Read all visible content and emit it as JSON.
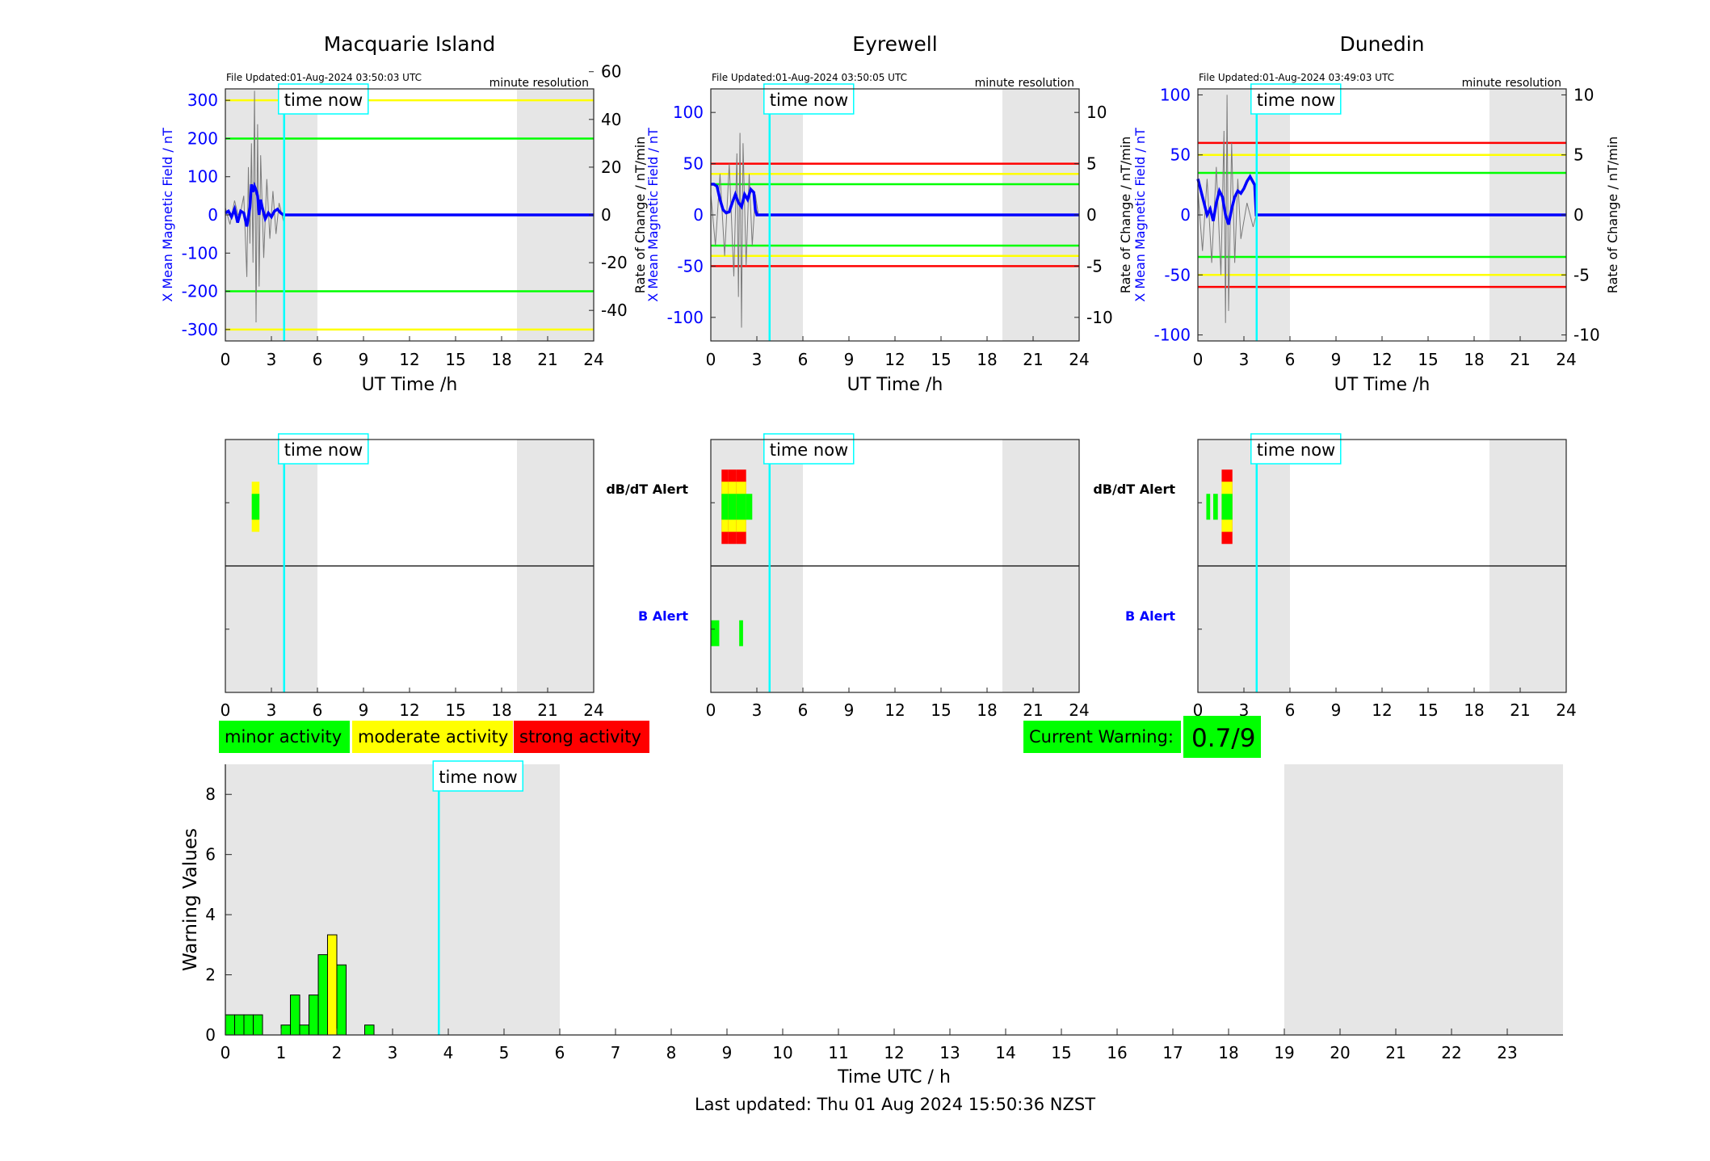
{
  "stations": [
    {
      "name": "Macquarie Island",
      "file_updated": "File Updated:01-Aug-2024 03:50:03 UTC",
      "resolution": "minute resolution",
      "ylabel_left": "X Mean Magnetic Field / nT",
      "ylabel_right": "Rate of Change / nT/min",
      "ylim_left": [
        -330,
        330
      ],
      "ylim_right": [
        -52.8,
        52.8
      ],
      "left_ticks": [
        -300,
        -200,
        -100,
        0,
        100,
        200,
        300
      ],
      "right_ticks": [
        -40,
        -20,
        0,
        20,
        40,
        60
      ],
      "show_right_labels": true,
      "thresholds": [
        {
          "value": 300,
          "color": "#ffff00"
        },
        {
          "value": 200,
          "color": "#00ff00"
        },
        {
          "value": -200,
          "color": "#00ff00"
        },
        {
          "value": -300,
          "color": "#ffff00"
        }
      ],
      "dbdt_alerts": [
        {
          "x0": 1.72,
          "x1": 2.22,
          "levels": [
            1,
            2
          ]
        }
      ],
      "b_alerts": [],
      "field_series": [
        [
          0,
          5
        ],
        [
          0.2,
          10
        ],
        [
          0.4,
          -5
        ],
        [
          0.6,
          15
        ],
        [
          0.8,
          -20
        ],
        [
          1.0,
          10
        ],
        [
          1.2,
          5
        ],
        [
          1.4,
          -30
        ],
        [
          1.6,
          20
        ],
        [
          1.7,
          80
        ],
        [
          1.8,
          60
        ],
        [
          1.9,
          75
        ],
        [
          2.0,
          65
        ],
        [
          2.1,
          50
        ],
        [
          2.2,
          0
        ],
        [
          2.3,
          40
        ],
        [
          2.4,
          20
        ],
        [
          2.6,
          -10
        ],
        [
          2.8,
          5
        ],
        [
          3.0,
          -5
        ],
        [
          3.2,
          10
        ],
        [
          3.4,
          15
        ],
        [
          3.6,
          5
        ],
        [
          3.8,
          0
        ],
        [
          3.9,
          0
        ],
        [
          24,
          0
        ]
      ],
      "rate_series": [
        [
          0,
          3
        ],
        [
          0.3,
          -4
        ],
        [
          0.6,
          6
        ],
        [
          0.9,
          -2
        ],
        [
          1.2,
          8
        ],
        [
          1.4,
          -26
        ],
        [
          1.5,
          20
        ],
        [
          1.6,
          -12
        ],
        [
          1.7,
          30
        ],
        [
          1.8,
          -20
        ],
        [
          1.9,
          52
        ],
        [
          2.0,
          -45
        ],
        [
          2.1,
          38
        ],
        [
          2.2,
          -30
        ],
        [
          2.3,
          25
        ],
        [
          2.5,
          -18
        ],
        [
          2.7,
          15
        ],
        [
          2.9,
          -10
        ],
        [
          3.1,
          10
        ],
        [
          3.3,
          -8
        ],
        [
          3.5,
          5
        ],
        [
          3.8,
          -3
        ],
        [
          3.9,
          0
        ]
      ]
    },
    {
      "name": "Eyrewell",
      "file_updated": "File Updated:01-Aug-2024 03:50:05 UTC",
      "resolution": "minute resolution",
      "ylabel_left": "X Mean Magnetic Field / nT",
      "ylabel_right": "Rate of Change / nT/min",
      "ylim_left": [
        -123,
        123
      ],
      "ylim_right": [
        -12.3,
        12.3
      ],
      "left_ticks": [
        -100,
        -50,
        0,
        50,
        100
      ],
      "right_ticks": [
        -10,
        -5,
        0,
        5,
        10
      ],
      "show_right_labels": true,
      "thresholds": [
        {
          "value": 50,
          "color": "#ff0000"
        },
        {
          "value": 40,
          "color": "#ffff00"
        },
        {
          "value": 30,
          "color": "#00ff00"
        },
        {
          "value": -30,
          "color": "#00ff00"
        },
        {
          "value": -40,
          "color": "#ffff00"
        },
        {
          "value": -50,
          "color": "#ff0000"
        }
      ],
      "dbdt_alerts": [
        {
          "x0": 0.7,
          "x1": 1.15,
          "levels": [
            1,
            2,
            3
          ]
        },
        {
          "x0": 1.15,
          "x1": 1.65,
          "levels": [
            1,
            2,
            3
          ]
        },
        {
          "x0": 1.65,
          "x1": 2.3,
          "levels": [
            1,
            2,
            3
          ]
        },
        {
          "x0": 2.3,
          "x1": 2.7,
          "levels": [
            1
          ]
        }
      ],
      "b_alerts": [
        {
          "x0": 0,
          "x1": 0.55,
          "levels": [
            1
          ]
        },
        {
          "x0": 1.85,
          "x1": 2.1,
          "levels": [
            1
          ]
        }
      ],
      "field_series": [
        [
          0,
          30
        ],
        [
          0.2,
          30
        ],
        [
          0.4,
          28
        ],
        [
          0.6,
          15
        ],
        [
          0.8,
          5
        ],
        [
          1.0,
          2
        ],
        [
          1.2,
          3
        ],
        [
          1.4,
          12
        ],
        [
          1.6,
          20
        ],
        [
          1.8,
          12
        ],
        [
          2.0,
          8
        ],
        [
          2.2,
          20
        ],
        [
          2.4,
          15
        ],
        [
          2.6,
          25
        ],
        [
          2.8,
          22
        ],
        [
          2.9,
          5
        ],
        [
          3.0,
          0
        ],
        [
          3.2,
          0
        ],
        [
          24,
          0
        ]
      ],
      "rate_series": [
        [
          0,
          2
        ],
        [
          0.3,
          -3
        ],
        [
          0.6,
          4
        ],
        [
          0.9,
          -4
        ],
        [
          1.2,
          5
        ],
        [
          1.5,
          -6
        ],
        [
          1.7,
          6
        ],
        [
          1.8,
          -8
        ],
        [
          1.9,
          8
        ],
        [
          2.0,
          -11
        ],
        [
          2.1,
          7
        ],
        [
          2.3,
          -5
        ],
        [
          2.5,
          4
        ],
        [
          2.7,
          -3
        ],
        [
          2.9,
          2
        ],
        [
          3.1,
          0
        ]
      ]
    },
    {
      "name": "Dunedin",
      "file_updated": "File Updated:01-Aug-2024 03:49:03 UTC",
      "resolution": "minute resolution",
      "ylabel_left": "X Mean Magnetic Field / nT",
      "ylabel_right": "Rate of Change / nT/min",
      "ylim_left": [
        -105,
        105
      ],
      "ylim_right": [
        -10.5,
        10.5
      ],
      "left_ticks": [
        -100,
        -50,
        0,
        50,
        100
      ],
      "right_ticks": [
        -10,
        -5,
        0,
        5,
        10
      ],
      "show_right_labels": true,
      "thresholds": [
        {
          "value": 60,
          "color": "#ff0000"
        },
        {
          "value": 50,
          "color": "#ffff00"
        },
        {
          "value": 35,
          "color": "#00ff00"
        },
        {
          "value": -35,
          "color": "#00ff00"
        },
        {
          "value": -50,
          "color": "#ffff00"
        },
        {
          "value": -60,
          "color": "#ff0000"
        }
      ],
      "dbdt_alerts": [
        {
          "x0": 0.55,
          "x1": 0.8,
          "levels": [
            1
          ]
        },
        {
          "x0": 1.0,
          "x1": 1.3,
          "levels": [
            1
          ]
        },
        {
          "x0": 1.55,
          "x1": 2.25,
          "levels": [
            1,
            2,
            3
          ]
        }
      ],
      "b_alerts": [],
      "field_series": [
        [
          0,
          30
        ],
        [
          0.2,
          20
        ],
        [
          0.4,
          10
        ],
        [
          0.6,
          0
        ],
        [
          0.8,
          5
        ],
        [
          1.0,
          -5
        ],
        [
          1.2,
          10
        ],
        [
          1.4,
          20
        ],
        [
          1.6,
          15
        ],
        [
          1.8,
          0
        ],
        [
          2.0,
          -8
        ],
        [
          2.2,
          5
        ],
        [
          2.4,
          15
        ],
        [
          2.6,
          20
        ],
        [
          2.8,
          18
        ],
        [
          3.0,
          22
        ],
        [
          3.2,
          28
        ],
        [
          3.4,
          32
        ],
        [
          3.7,
          25
        ],
        [
          3.8,
          0
        ],
        [
          24,
          0
        ]
      ],
      "rate_series": [
        [
          0,
          2
        ],
        [
          0.3,
          -3
        ],
        [
          0.6,
          3
        ],
        [
          0.9,
          -4
        ],
        [
          1.2,
          4
        ],
        [
          1.5,
          -5
        ],
        [
          1.7,
          7
        ],
        [
          1.8,
          -9
        ],
        [
          1.9,
          10
        ],
        [
          2.0,
          -8
        ],
        [
          2.2,
          6
        ],
        [
          2.4,
          -4
        ],
        [
          2.6,
          3
        ],
        [
          2.8,
          -2
        ],
        [
          3.2,
          1
        ],
        [
          3.6,
          -1
        ],
        [
          3.8,
          0
        ]
      ]
    }
  ],
  "time_now_label": "time now",
  "time_now_hours": 3.83,
  "night_shading": [
    [
      0,
      6
    ],
    [
      19,
      24
    ]
  ],
  "top_xlabel": "UT Time /h",
  "top_xticks": [
    0,
    3,
    6,
    9,
    12,
    15,
    18,
    21,
    24
  ],
  "dbdt_alert_label": "dB/dT Alert",
  "b_alert_label": "B Alert",
  "legend": [
    {
      "label": "minor activity",
      "color": "#00ff00"
    },
    {
      "label": "moderate activity",
      "color": "#ffff00"
    },
    {
      "label": "strong activity",
      "color": "#ff0000"
    }
  ],
  "current_warning": {
    "label": "Current Warning:",
    "value": "0.7/9",
    "color": "#00ff00"
  },
  "chart_data": {
    "type": "bar",
    "x": [
      0,
      0.167,
      0.333,
      0.5,
      1.0,
      1.167,
      1.333,
      1.5,
      1.667,
      1.833,
      2.0,
      2.167,
      2.5
    ],
    "values": [
      0.67,
      0.67,
      0.67,
      0.67,
      0.33,
      1.33,
      0.33,
      1.33,
      2.67,
      3.33,
      2.33,
      0,
      0.33
    ],
    "colors": [
      "#00ff00",
      "#00ff00",
      "#00ff00",
      "#00ff00",
      "#00ff00",
      "#00ff00",
      "#00ff00",
      "#00ff00",
      "#00ff00",
      "#ffff00",
      "#00ff00",
      "#00ff00",
      "#00ff00"
    ],
    "bar_width_hours": 0.167,
    "xlabel": "Time UTC / h",
    "ylabel": "Warning Values",
    "xlim": [
      0,
      24
    ],
    "ylim": [
      0,
      9
    ],
    "xticks": [
      0,
      1,
      2,
      3,
      4,
      5,
      6,
      7,
      8,
      9,
      10,
      11,
      12,
      13,
      14,
      15,
      16,
      17,
      18,
      19,
      20,
      21,
      22,
      23
    ],
    "yticks": [
      0,
      2,
      4,
      6,
      8
    ]
  },
  "last_updated": "Last updated: Thu 01 Aug 2024 15:50:36 NZST"
}
